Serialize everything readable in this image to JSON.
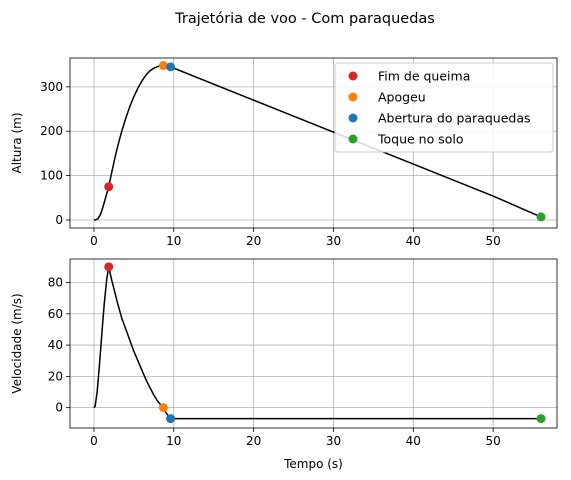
{
  "chart_data": {
    "title": "Trajetória de voo - Com paraquedas",
    "colors": {
      "line": "#000000",
      "grid": "#b0b0b0",
      "legend_border": "#cccccc",
      "event_colors": [
        "#d62728",
        "#ff7f0e",
        "#1f77b4",
        "#2ca02c"
      ]
    },
    "subplots": [
      {
        "type": "line",
        "ylabel": "Altura (m)",
        "xlabel": "",
        "xlim": [
          -3,
          58
        ],
        "ylim": [
          -18,
          365
        ],
        "xticks": [
          0,
          10,
          20,
          30,
          40,
          50
        ],
        "yticks": [
          0,
          100,
          200,
          300
        ],
        "grid": true,
        "legend_position": "upper-right",
        "series": [
          {
            "name": "",
            "x": [
              0,
              0.25,
              0.5,
              0.75,
              1.0,
              1.25,
              1.5,
              1.75,
              1.85,
              2.2,
              2.6,
              3.0,
              3.5,
              4.0,
              4.5,
              5.0,
              5.5,
              6.0,
              6.5,
              7.0,
              7.5,
              8.0,
              8.5,
              8.9,
              9.6,
              20,
              30,
              40,
              50,
              56
            ],
            "y": [
              0,
              0.6,
              3,
              10,
              22,
              37,
              53,
              68,
              75,
              105,
              138,
              168,
              201,
              230,
              256,
              278,
              297,
              313,
              326,
              336,
              342,
              346,
              347,
              348,
              345,
              270,
              198,
              126,
              54,
              7
            ]
          }
        ],
        "events": [
          {
            "name": "Fim de queima",
            "x": 1.85,
            "y": 75
          },
          {
            "name": "Apogeu",
            "x": 8.7,
            "y": 348
          },
          {
            "name": "Abertura do paraquedas",
            "x": 9.6,
            "y": 345
          },
          {
            "name": "Toque no solo",
            "x": 56,
            "y": 7
          }
        ]
      },
      {
        "type": "line",
        "ylabel": "Velocidade (m/s)",
        "xlabel": "Tempo (s)",
        "xlim": [
          -3,
          58
        ],
        "ylim": [
          -13,
          95
        ],
        "xticks": [
          0,
          10,
          20,
          30,
          40,
          50
        ],
        "yticks": [
          0,
          20,
          40,
          60,
          80
        ],
        "grid": true,
        "series": [
          {
            "name": "",
            "x": [
              0,
              0.15,
              0.4,
              0.7,
              1.0,
              1.3,
              1.6,
              1.85,
              2.2,
              2.6,
              3.0,
              3.5,
              4.0,
              4.5,
              5.0,
              5.5,
              6.0,
              6.5,
              7.0,
              7.5,
              8.0,
              8.5,
              8.7,
              9.0,
              9.4,
              9.6,
              20,
              30,
              40,
              50,
              56
            ],
            "y": [
              0,
              1,
              10,
              28,
              48,
              67,
              82,
              90,
              82,
              74,
              66,
              57,
              50,
              43,
              36,
              30,
              24,
              18,
              13,
              8,
              4,
              1,
              0,
              -3,
              -6,
              -7,
              -7,
              -7,
              -7,
              -7,
              -7
            ]
          }
        ],
        "events": [
          {
            "name": "Fim de queima",
            "x": 1.85,
            "y": 90
          },
          {
            "name": "Apogeu",
            "x": 8.7,
            "y": 0
          },
          {
            "name": "Abertura do paraquedas",
            "x": 9.6,
            "y": -7
          },
          {
            "name": "Toque no solo",
            "x": 56,
            "y": -7
          }
        ]
      }
    ]
  }
}
